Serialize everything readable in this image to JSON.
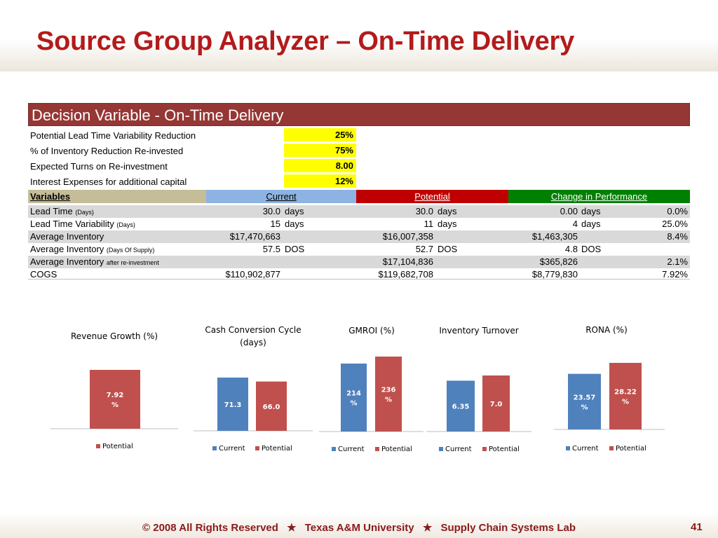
{
  "slide": {
    "title": "Source Group Analyzer – On-Time Delivery",
    "page_number": "41"
  },
  "decision": {
    "header": "Decision Variable - On-Time Delivery",
    "inputs": [
      {
        "label": "Potential Lead Time Variability Reduction",
        "value": "25%"
      },
      {
        "label": "% of Inventory Reduction Re-invested",
        "value": "75%"
      },
      {
        "label": "Expected Turns on Re-investment",
        "value": "8.00"
      },
      {
        "label": "Interest Expenses for additional capital",
        "value": "12%"
      }
    ]
  },
  "table": {
    "headers": {
      "variables": "Variables",
      "current": "Current",
      "potential": "Potential",
      "change": "Change in Performance"
    },
    "colors": {
      "variables": "#c4bd97",
      "current": "#8db3e2",
      "potential": "#c00000",
      "change": "#008000"
    },
    "rows": [
      {
        "label": "Lead Time",
        "sub": "(Days)",
        "current": "30.0",
        "current_unit": "days",
        "potential": "30.0",
        "potential_unit": "days",
        "change": "0.00",
        "change_unit": "days",
        "pct": "0.0%"
      },
      {
        "label": "Lead Time Variability",
        "sub": "(Days)",
        "current": "15",
        "current_unit": "days",
        "potential": "11",
        "potential_unit": "days",
        "change": "4",
        "change_unit": "days",
        "pct": "25.0%"
      },
      {
        "label": "Average Inventory",
        "sub": "",
        "current": "$17,470,663",
        "current_unit": "",
        "potential": "$16,007,358",
        "potential_unit": "",
        "change": "$1,463,305",
        "change_unit": "",
        "pct": "8.4%"
      },
      {
        "label": "Average Inventory",
        "sub": "(Days Of Supply)",
        "current": "57.5",
        "current_unit": "DOS",
        "potential": "52.7",
        "potential_unit": "DOS",
        "change": "4.8",
        "change_unit": "DOS",
        "pct": ""
      },
      {
        "label": "Average Inventory",
        "sub": "after re-investment",
        "current": "",
        "current_unit": "",
        "potential": "$17,104,836",
        "potential_unit": "",
        "change": "$365,826",
        "change_unit": "",
        "pct": "2.1%"
      },
      {
        "label": "COGS",
        "sub": "",
        "current": "$110,902,877",
        "current_unit": "",
        "potential": "$119,682,708",
        "potential_unit": "",
        "change": "$8,779,830",
        "change_unit": "",
        "pct": "7.92%"
      }
    ]
  },
  "chart_colors": {
    "current": "#4f81bd",
    "potential": "#c0504d"
  },
  "chart_data": [
    {
      "type": "bar",
      "title": "Revenue Growth (%)",
      "categories": [
        ""
      ],
      "series": [
        {
          "name": "Potential",
          "values": [
            7.92
          ],
          "labels": [
            "7.92",
            "%"
          ]
        }
      ]
    },
    {
      "type": "bar",
      "title": "Cash Conversion Cycle (days)",
      "categories": [
        ""
      ],
      "series": [
        {
          "name": "Current",
          "values": [
            71.3
          ],
          "labels": [
            "71.3"
          ]
        },
        {
          "name": "Potential",
          "values": [
            66.0
          ],
          "labels": [
            "66.0"
          ]
        }
      ]
    },
    {
      "type": "bar",
      "title": "GMROI (%)",
      "categories": [
        ""
      ],
      "series": [
        {
          "name": "Current",
          "values": [
            214
          ],
          "labels": [
            "214",
            "%"
          ]
        },
        {
          "name": "Potential",
          "values": [
            236
          ],
          "labels": [
            "236",
            "%"
          ]
        }
      ]
    },
    {
      "type": "bar",
      "title": "Inventory Turnover",
      "categories": [
        ""
      ],
      "series": [
        {
          "name": "Current",
          "values": [
            6.35
          ],
          "labels": [
            "6.35"
          ]
        },
        {
          "name": "Potential",
          "values": [
            7.0
          ],
          "labels": [
            "7.0"
          ]
        }
      ]
    },
    {
      "type": "bar",
      "title": "RONA (%)",
      "categories": [
        ""
      ],
      "series": [
        {
          "name": "Current",
          "values": [
            23.57
          ],
          "labels": [
            "23.57",
            "%"
          ]
        },
        {
          "name": "Potential",
          "values": [
            28.22
          ],
          "labels": [
            "28.22",
            "%"
          ]
        }
      ]
    }
  ],
  "footer": {
    "copyright": "©",
    "year_text": "2008 All Rights Reserved",
    "star": "★",
    "university": "Texas A&M University",
    "lab": "Supply Chain Systems Lab"
  }
}
